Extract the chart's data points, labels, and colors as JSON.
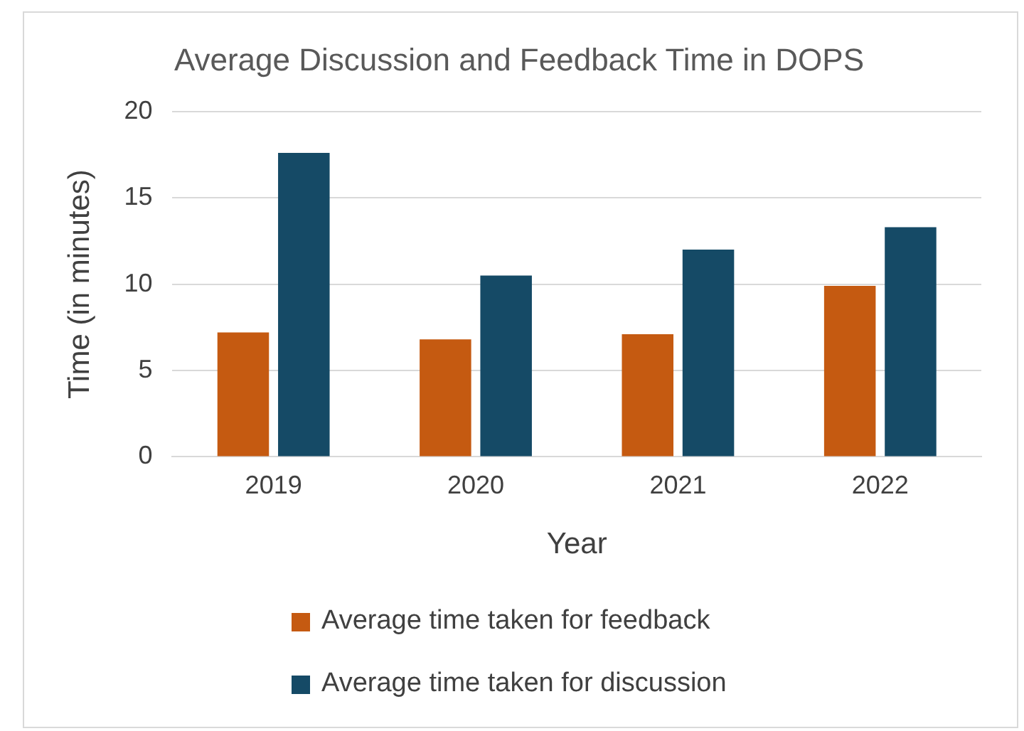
{
  "chart_data": {
    "type": "bar",
    "title": "Average Discussion and Feedback Time in DOPS",
    "xlabel": "Year",
    "ylabel": "Time (in minutes)",
    "categories": [
      "2019",
      "2020",
      "2021",
      "2022"
    ],
    "series": [
      {
        "name": "Average time taken for feedback",
        "color": "#c55a11",
        "values": [
          7.2,
          6.8,
          7.1,
          9.9
        ]
      },
      {
        "name": "Average time taken for discussion",
        "color": "#154a66",
        "values": [
          17.6,
          10.5,
          12.0,
          13.3
        ]
      }
    ],
    "ylim": [
      0,
      20
    ],
    "yticks": [
      0,
      5,
      10,
      15,
      20
    ],
    "grid": "y",
    "legend": "bottom"
  }
}
